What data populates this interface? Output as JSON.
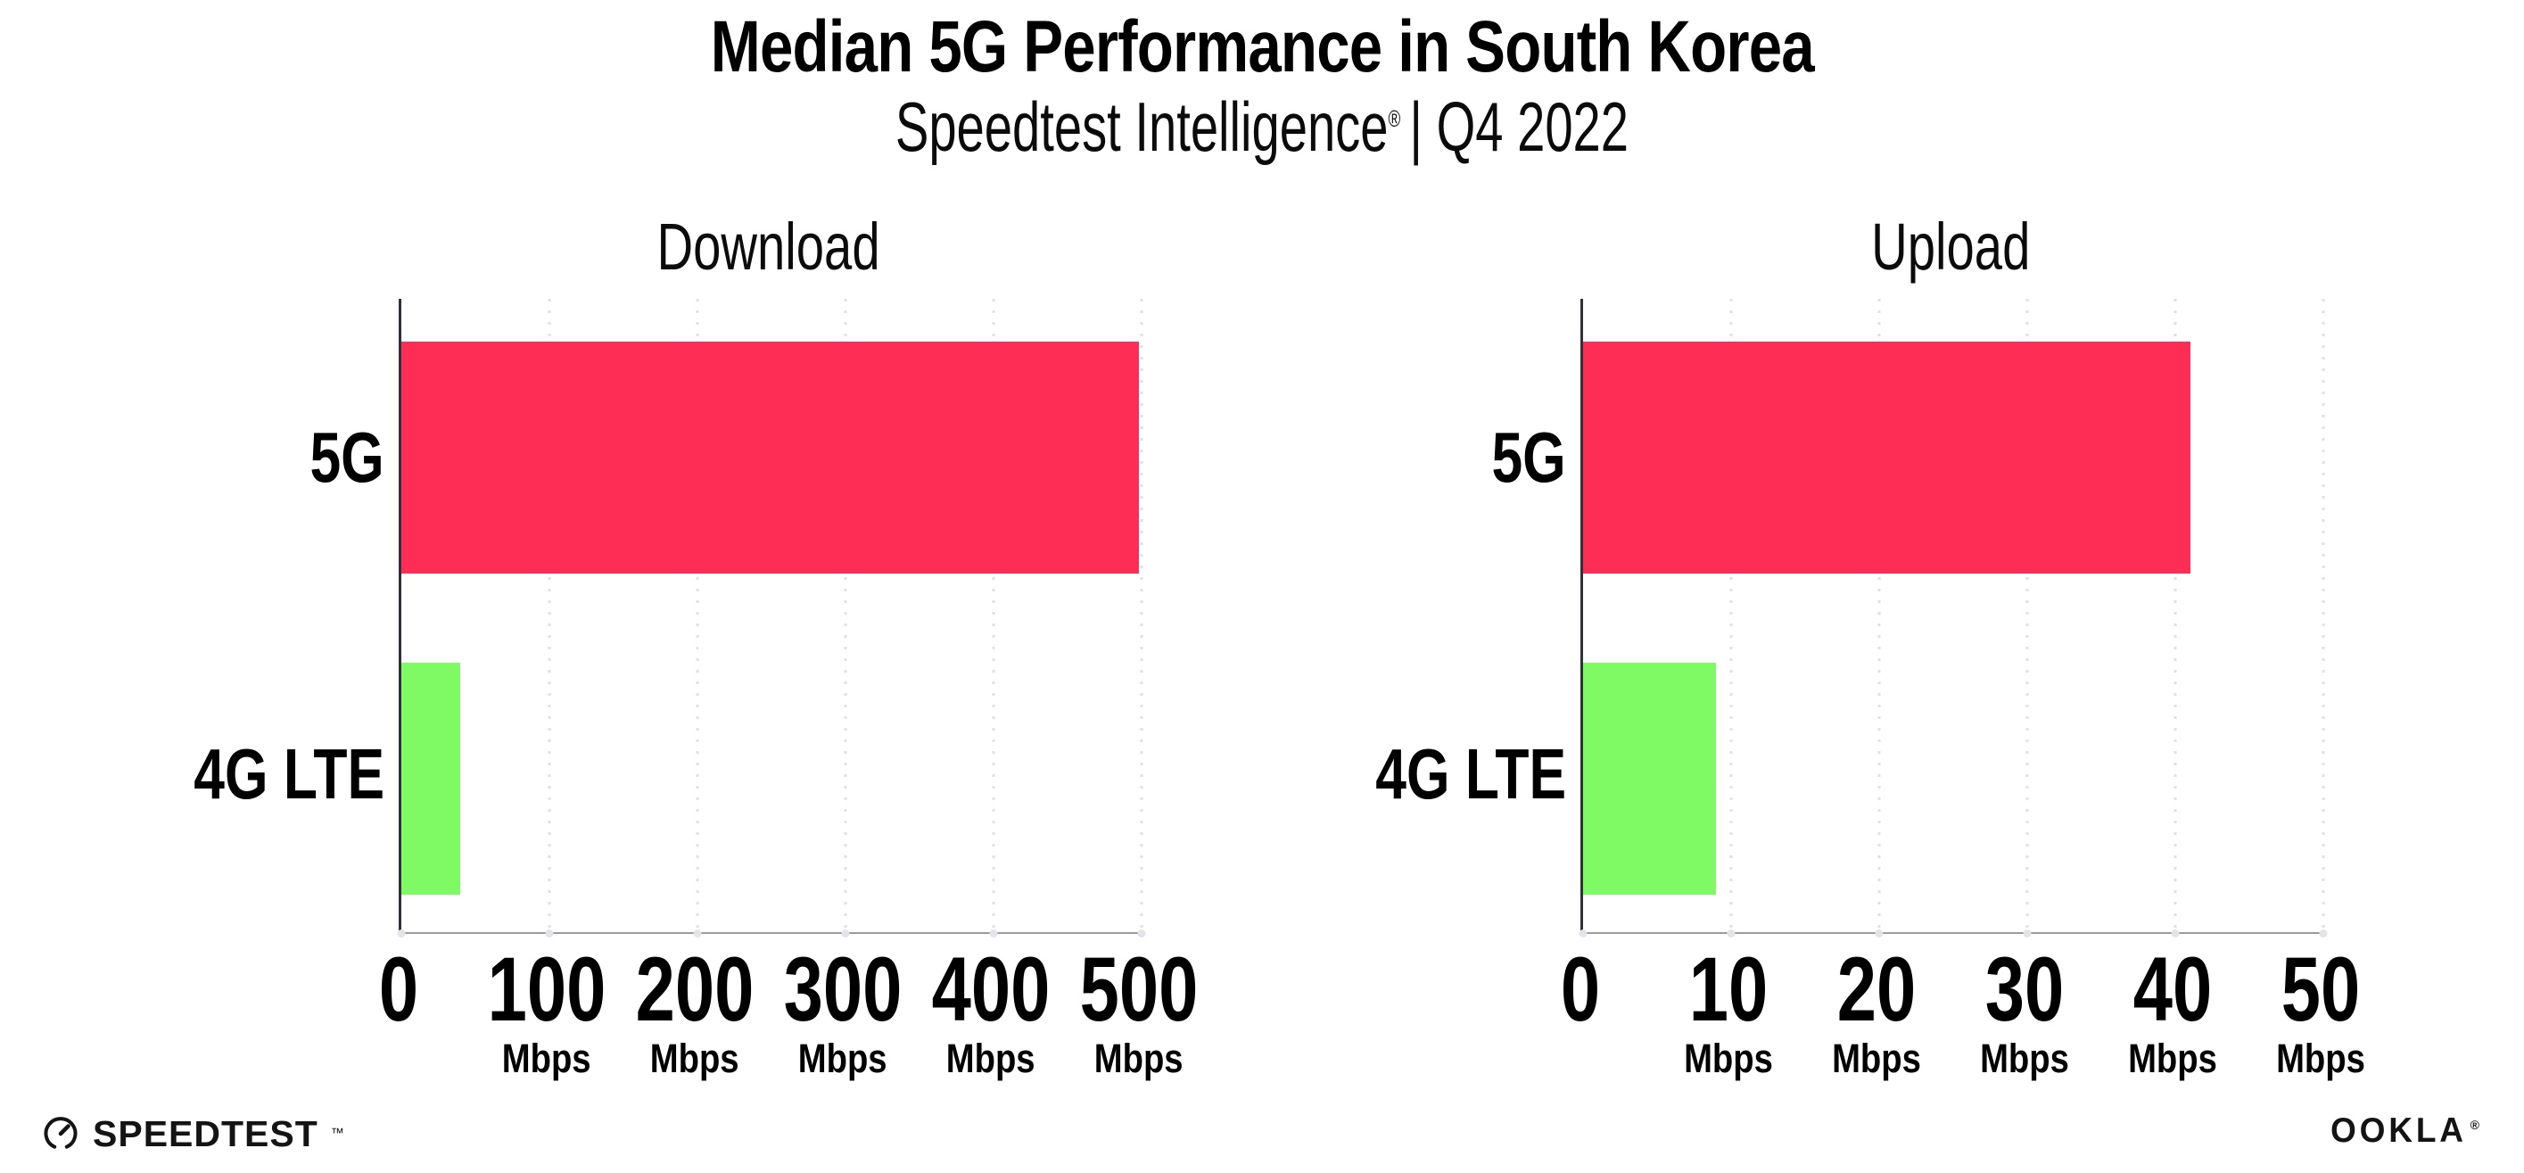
{
  "header": {
    "title": "Median 5G Performance in South Korea",
    "subtitle_brand": "Speedtest Intelligence",
    "subtitle_trademark": "®",
    "subtitle_rest": "| Q4 2022"
  },
  "chart_data": [
    {
      "type": "bar",
      "orientation": "horizontal",
      "title": "Download",
      "categories": [
        "5G",
        "4G LTE"
      ],
      "values": [
        498,
        40
      ],
      "value_unit": "Mbps",
      "xlim": [
        0,
        500
      ],
      "xticks": [
        0,
        100,
        200,
        300,
        400,
        500
      ],
      "ticks": [
        {
          "label": "0",
          "unit": ""
        },
        {
          "label": "100",
          "unit": "Mbps"
        },
        {
          "label": "200",
          "unit": "Mbps"
        },
        {
          "label": "300",
          "unit": "Mbps"
        },
        {
          "label": "400",
          "unit": "Mbps"
        },
        {
          "label": "500",
          "unit": "Mbps"
        }
      ],
      "colors": [
        "#fe2d55",
        "#80fa64"
      ],
      "grid": "dotted vertical gridlines at each tick",
      "legend": "none"
    },
    {
      "type": "bar",
      "orientation": "horizontal",
      "title": "Upload",
      "categories": [
        "5G",
        "4G LTE"
      ],
      "values": [
        41,
        9
      ],
      "value_unit": "Mbps",
      "xlim": [
        0,
        50
      ],
      "xticks": [
        0,
        10,
        20,
        30,
        40,
        50
      ],
      "ticks": [
        {
          "label": "0",
          "unit": ""
        },
        {
          "label": "10",
          "unit": "Mbps"
        },
        {
          "label": "20",
          "unit": "Mbps"
        },
        {
          "label": "30",
          "unit": "Mbps"
        },
        {
          "label": "40",
          "unit": "Mbps"
        },
        {
          "label": "50",
          "unit": "Mbps"
        }
      ],
      "colors": [
        "#fe2d55",
        "#80fa64"
      ],
      "grid": "dotted vertical gridlines at each tick",
      "legend": "none"
    }
  ],
  "footer": {
    "speedtest_text": "SPEEDTEST",
    "speedtest_trademark": "™",
    "ookla_text": "OOKLA",
    "ookla_reg": "®"
  },
  "colors": {
    "bar_5g": "#fe2d55",
    "bar_4g_lte": "#80fa64",
    "axis_spine": "#30303a",
    "axis_line": "#9b9b9b",
    "gridline_dots": "#dfe0ea",
    "text": "#000000",
    "background": "#ffffff"
  }
}
